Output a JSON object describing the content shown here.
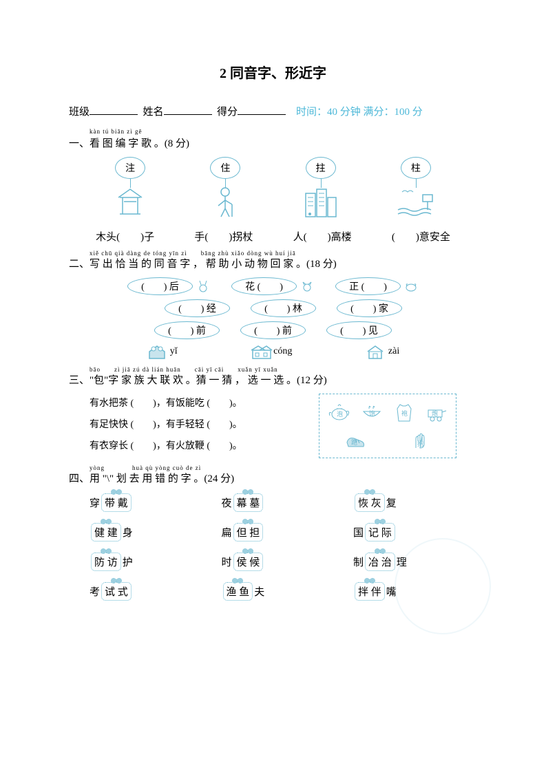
{
  "title": "2 同音字、形近字",
  "info": {
    "class_label": "班级",
    "name_label": "姓名",
    "score_label": "得分",
    "time_label": "时间：40 分钟 满分：100 分"
  },
  "q1": {
    "pinyin": "kàn tú biān zì gē",
    "header": "一、看 图 编 字 歌 。(8 分)",
    "balloons": [
      "注",
      "住",
      "拄",
      "柱"
    ],
    "labels": [
      "木头(　　)子",
      "手(　　)拐杖",
      "人(　　)高楼",
      "(　　)意安全"
    ]
  },
  "q2": {
    "pinyin": "xiě chū qià dàng de tóng yīn zì　　bāng zhù xiǎo dòng wù huí jiā",
    "header": "二、写 出 恰 当 的 同 音 字 ， 帮 助 小 动 物 回 家 。(18 分)",
    "row1": [
      "(　　) 后",
      "花 (　　)",
      "正 (　　)"
    ],
    "row2": [
      "(　　) 经",
      "(　　) 林",
      "(　　) 家"
    ],
    "row3": [
      "(　　) 前",
      "(　　) 前",
      "(　　) 见"
    ],
    "houses": [
      "yǐ",
      "cóng",
      "zài"
    ]
  },
  "q3": {
    "pinyin": "bāo　　zì jiā zú dà lián huān　　cāi yī cāi　　xuǎn yī xuǎn",
    "header": "三、\"包\"字 家 族 大 联 欢 。猜 一 猜 ， 选 一 选 。(12 分)",
    "lines": [
      "有水把茶 (　　)，有饭能吃 (　　)。",
      "有足快快 (　　)，有手轻轻 (　　)。",
      "有衣穿长 (　　)，有火放鞭 (　　)。"
    ],
    "icons": [
      "泡",
      "饱",
      "袍",
      "炮",
      "跑",
      "抱"
    ]
  },
  "q4": {
    "pinyin": "yòng　　　　huà qù yòng cuò de zì",
    "header": "四、用 \"\\\" 划 去 用 错 的 字 。(24 分)",
    "rows": [
      [
        {
          "pre": "穿",
          "pair": [
            "带",
            "戴"
          ],
          "post": ""
        },
        {
          "pre": "夜",
          "pair": [
            "幕",
            "墓"
          ],
          "post": ""
        },
        {
          "pre": "",
          "pair": [
            "恢",
            "灰"
          ],
          "post": "复"
        }
      ],
      [
        {
          "pre": "",
          "pair": [
            "健",
            "建"
          ],
          "post": "身"
        },
        {
          "pre": "扁",
          "pair": [
            "但",
            "担"
          ],
          "post": ""
        },
        {
          "pre": "国",
          "pair": [
            "记",
            "际"
          ],
          "post": ""
        }
      ],
      [
        {
          "pre": "",
          "pair": [
            "防",
            "访"
          ],
          "post": "护"
        },
        {
          "pre": "时",
          "pair": [
            "侯",
            "候"
          ],
          "post": ""
        },
        {
          "pre": "制",
          "pair": [
            "冶",
            "治"
          ],
          "post": "理"
        }
      ],
      [
        {
          "pre": "考",
          "pair": [
            "试",
            "式"
          ],
          "post": ""
        },
        {
          "pre": "",
          "pair": [
            "渔",
            "鱼"
          ],
          "post": "夫"
        },
        {
          "pre": "",
          "pair": [
            "拌",
            "伴"
          ],
          "post": "嘴"
        }
      ]
    ]
  },
  "colors": {
    "accent": "#6ab8d0",
    "blue_text": "#4db8d8",
    "light": "#d8ecf3"
  }
}
